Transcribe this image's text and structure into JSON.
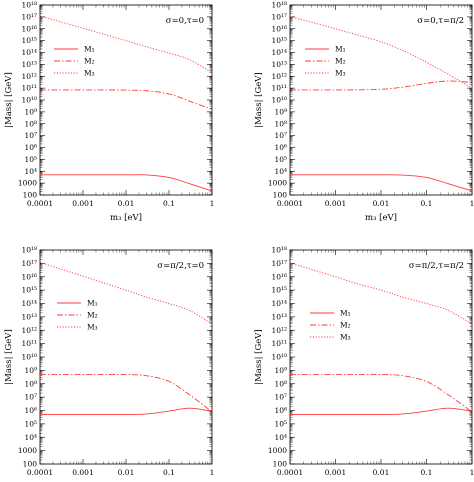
{
  "chart_data": [
    {
      "type": "line",
      "annotation": "σ=0,τ=0",
      "xlabel": "m₃ [eV]",
      "ylabel": "|Mass| [GeV]",
      "xscale": "log",
      "yscale": "log",
      "xlim": [
        0.0001,
        1
      ],
      "ylim": [
        100,
        1e+18
      ],
      "x": [
        0.0001,
        0.0003,
        0.001,
        0.003,
        0.01,
        0.03,
        0.1,
        0.3,
        1
      ],
      "series": [
        {
          "name": "M₁",
          "style": "solid",
          "values": [
            5000,
            5000,
            5000,
            5000,
            5000,
            4900,
            3000,
            900,
            220
          ]
        },
        {
          "name": "M₂",
          "style": "dashdot",
          "values": [
            70000000000.0,
            70000000000.0,
            70000000000.0,
            70000000000.0,
            68000000000.0,
            60000000000.0,
            32000000000.0,
            8000000000.0,
            1600000000.0
          ]
        },
        {
          "name": "M₃",
          "style": "dotted",
          "values": [
            1.2e+17,
            3.8e+16,
            1.1e+16,
            3500000000000000.0,
            1000000000000000.0,
            300000000000000.0,
            90000000000000.0,
            25000000000000.0,
            2000000000000.0
          ]
        }
      ]
    },
    {
      "type": "line",
      "annotation": "σ=0,τ=π/2",
      "xlabel": "m₃ [eV]",
      "ylabel": "|Mass| [GeV]",
      "xscale": "log",
      "yscale": "log",
      "xlim": [
        0.0001,
        1
      ],
      "ylim": [
        100,
        1e+18
      ],
      "x": [
        0.0001,
        0.0003,
        0.001,
        0.003,
        0.01,
        0.03,
        0.1,
        0.3,
        1
      ],
      "series": [
        {
          "name": "M₁",
          "style": "solid",
          "values": [
            5000,
            5000,
            5000,
            5000,
            5000,
            4800,
            3000,
            900,
            220
          ]
        },
        {
          "name": "M₂",
          "style": "dashdot",
          "values": [
            70000000000.0,
            70000000000.0,
            70000000000.0,
            72000000000.0,
            80000000000.0,
            120000000000.0,
            250000000000.0,
            400000000000.0,
            300000000000.0
          ]
        },
        {
          "name": "M₃",
          "style": "dotted",
          "values": [
            1.1e+17,
            3.5e+16,
            1e+16,
            3000000000000000.0,
            800000000000000.0,
            150000000000000.0,
            15000000000000.0,
            1500000000000.0,
            100000000000.0
          ]
        }
      ]
    },
    {
      "type": "line",
      "annotation": "σ=π/2,τ=0",
      "xlabel": "m₃ [eV]",
      "ylabel": "|Mass| [GeV]",
      "xscale": "log",
      "yscale": "log",
      "xlim": [
        0.0001,
        1
      ],
      "ylim": [
        100,
        1e+18
      ],
      "x": [
        0.0001,
        0.0003,
        0.001,
        0.003,
        0.01,
        0.03,
        0.1,
        0.3,
        1
      ],
      "series": [
        {
          "name": "M₁",
          "style": "solid",
          "values": [
            500000.0,
            500000.0,
            500000.0,
            500000.0,
            500000.0,
            550000.0,
            900000.0,
            1500000.0,
            900000.0
          ]
        },
        {
          "name": "M₂",
          "style": "dashdot",
          "values": [
            500000000.0,
            500000000.0,
            500000000.0,
            500000000.0,
            490000000.0,
            400000000.0,
            150000000.0,
            15000000.0,
            800000.0
          ]
        },
        {
          "name": "M₃",
          "style": "dotted",
          "values": [
            1.2e+17,
            3.8e+16,
            1.1e+16,
            3500000000000000.0,
            1000000000000000.0,
            300000000000000.0,
            100000000000000.0,
            30000000000000.0,
            3000000000000.0
          ]
        }
      ]
    },
    {
      "type": "line",
      "annotation": "σ=π/2,τ=π/2",
      "xlabel": "m₃ [eV]",
      "ylabel": "|Mass| [GeV]",
      "xscale": "log",
      "yscale": "log",
      "xlim": [
        0.0001,
        1
      ],
      "ylim": [
        100,
        1e+18
      ],
      "x": [
        0.0001,
        0.0003,
        0.001,
        0.003,
        0.01,
        0.03,
        0.1,
        0.3,
        1
      ],
      "series": [
        {
          "name": "M₁",
          "style": "solid",
          "values": [
            500000.0,
            500000.0,
            500000.0,
            500000.0,
            500000.0,
            550000.0,
            900000.0,
            1500000.0,
            900000.0
          ]
        },
        {
          "name": "M₂",
          "style": "dashdot",
          "values": [
            500000000.0,
            500000000.0,
            500000000.0,
            500000000.0,
            490000000.0,
            400000000.0,
            150000000.0,
            15000000.0,
            800000.0
          ]
        },
        {
          "name": "M₃",
          "style": "dotted",
          "values": [
            1.1e+17,
            3.5e+16,
            1e+16,
            3000000000000000.0,
            1000000000000000.0,
            300000000000000.0,
            100000000000000.0,
            30000000000000.0,
            3000000000000.0
          ]
        }
      ]
    }
  ],
  "x_tick_labels": [
    "0.0001",
    "0.001",
    "0.01",
    "0.1",
    "1"
  ],
  "y_tick_labels": [
    "100",
    "1000",
    "10⁴",
    "10⁵",
    "10⁶",
    "10⁷",
    "10⁸",
    "10⁹",
    "10¹⁰",
    "10¹¹",
    "10¹²",
    "10¹³",
    "10¹⁴",
    "10¹⁵",
    "10¹⁶",
    "10¹⁷",
    "10¹⁸"
  ],
  "colors": {
    "series": "#ff3b3b",
    "axes": "#000000"
  }
}
